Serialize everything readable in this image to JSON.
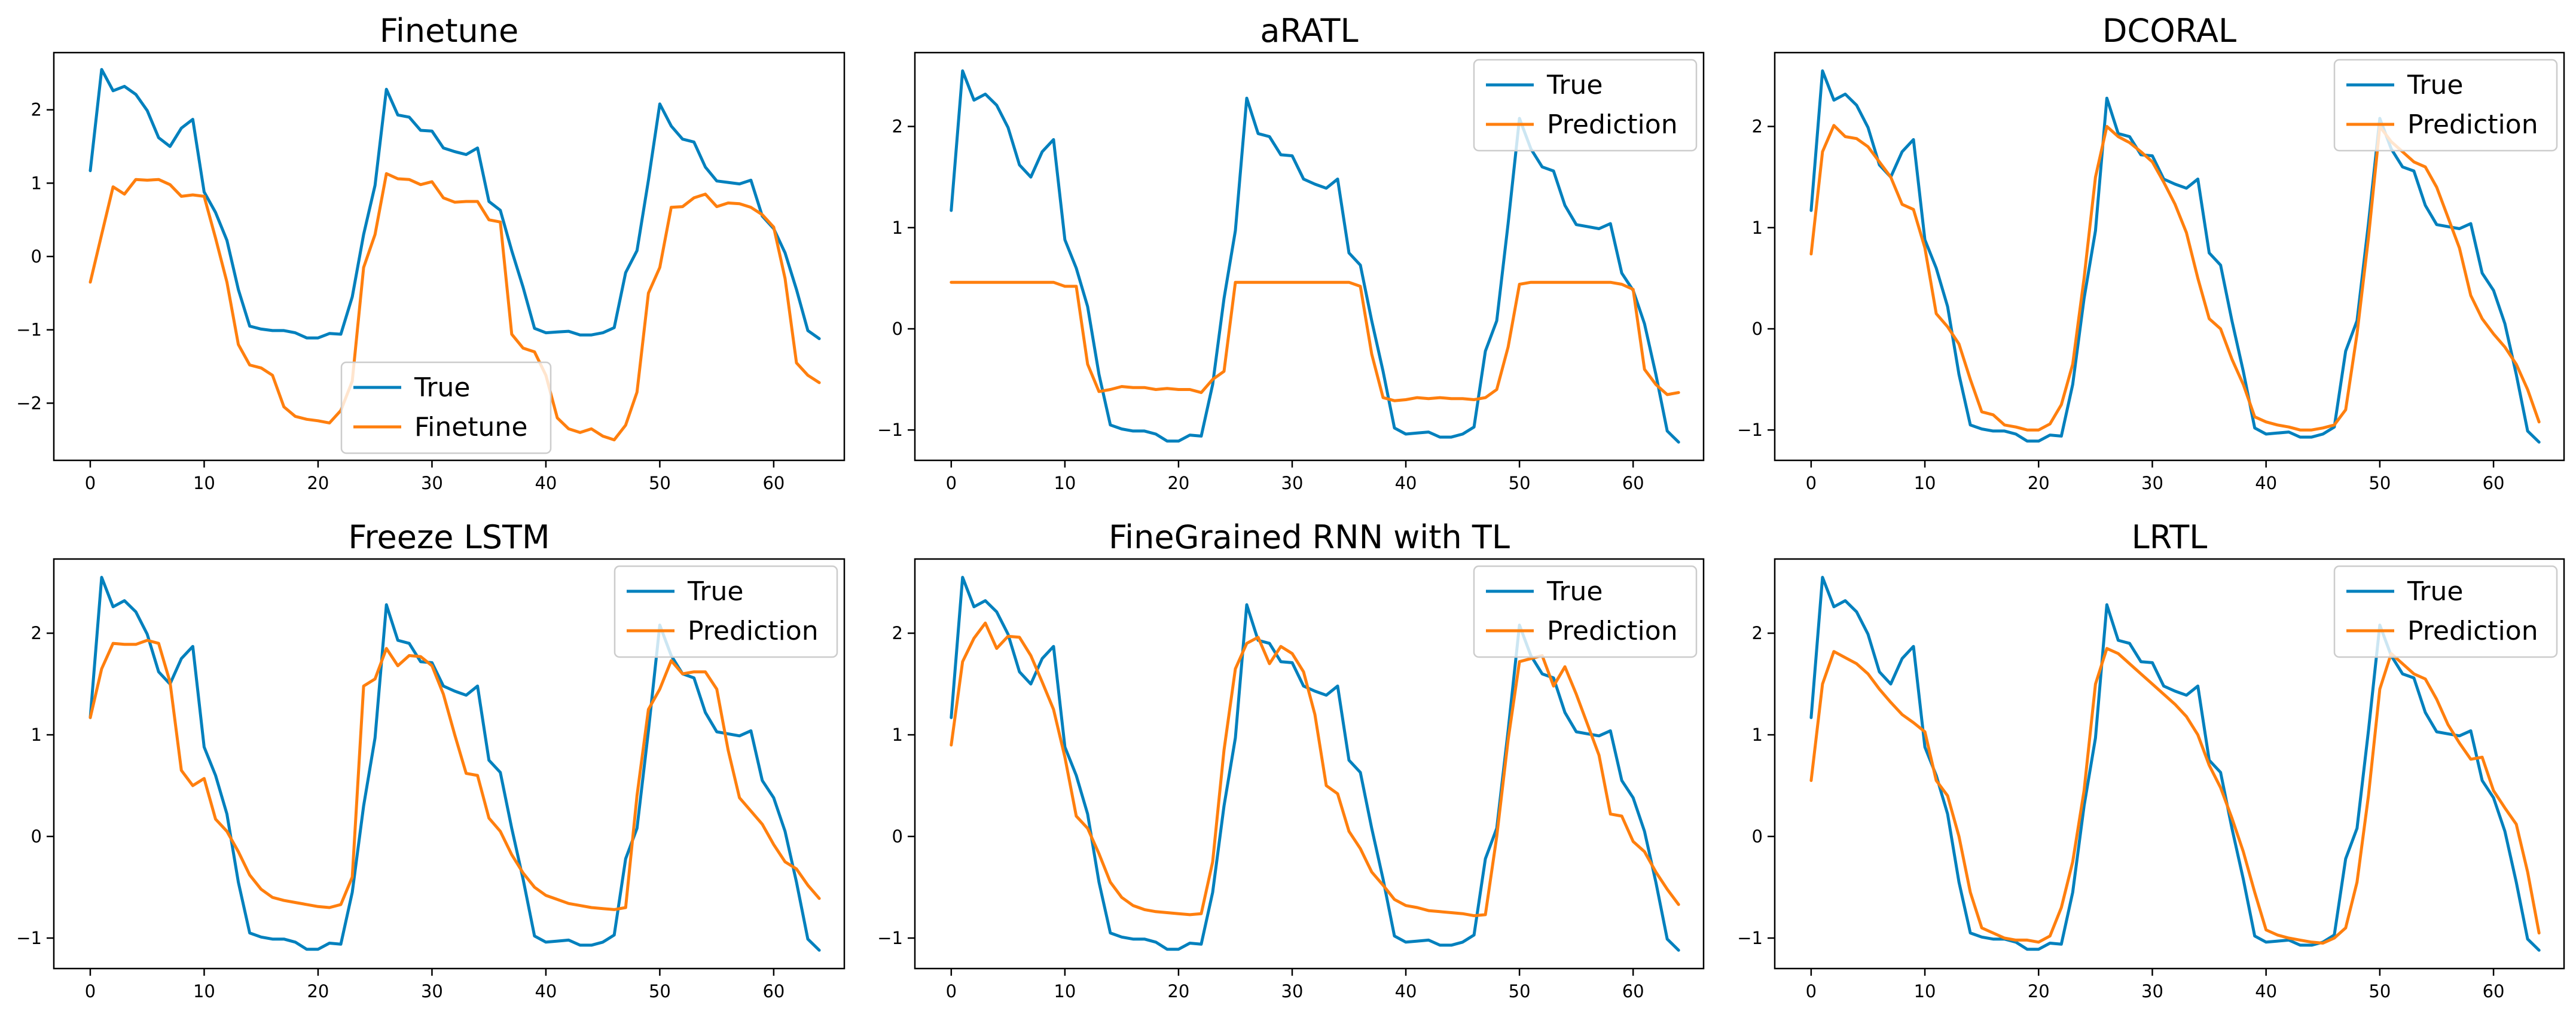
{
  "colors": {
    "true": "#0080bd",
    "prediction": "#ff7f0e"
  },
  "true_series": [
    1.17,
    2.55,
    2.26,
    2.32,
    2.21,
    1.99,
    1.62,
    1.5,
    1.75,
    1.87,
    0.88,
    0.6,
    0.22,
    -0.45,
    -0.95,
    -0.99,
    -1.01,
    -1.01,
    -1.04,
    -1.11,
    -1.11,
    -1.05,
    -1.06,
    -0.55,
    0.3,
    0.97,
    2.28,
    1.93,
    1.9,
    1.72,
    1.71,
    1.48,
    1.43,
    1.39,
    1.48,
    0.75,
    0.63,
    0.08,
    -0.42,
    -0.98,
    -1.04,
    -1.03,
    -1.02,
    -1.07,
    -1.07,
    -1.04,
    -0.97,
    -0.22,
    0.08,
    1.04,
    2.08,
    1.78,
    1.6,
    1.56,
    1.22,
    1.03,
    1.01,
    0.99,
    1.04,
    0.55,
    0.38,
    0.05,
    -0.45,
    -1.01,
    -1.12
  ],
  "chart_data": [
    {
      "type": "line",
      "title": "Finetune",
      "legend_position": "bottom-center",
      "xlim": [
        -3.2,
        66.2
      ],
      "ylim": [
        -2.78,
        2.78
      ],
      "xticks": [
        0,
        10,
        20,
        30,
        40,
        50,
        60
      ],
      "yticks": [
        -2,
        -1,
        0,
        1,
        2
      ],
      "series": [
        {
          "name": "True",
          "color": "true",
          "ref": "true_series"
        },
        {
          "name": "Finetune",
          "color": "prediction",
          "values": [
            -0.35,
            0.3,
            0.95,
            0.85,
            1.05,
            1.04,
            1.05,
            0.98,
            0.82,
            0.84,
            0.82,
            0.25,
            -0.35,
            -1.2,
            -1.48,
            -1.52,
            -1.62,
            -2.05,
            -2.18,
            -2.22,
            -2.24,
            -2.27,
            -2.1,
            -1.7,
            -0.15,
            0.3,
            1.13,
            1.06,
            1.05,
            0.98,
            1.02,
            0.8,
            0.74,
            0.75,
            0.75,
            0.5,
            0.47,
            -1.06,
            -1.25,
            -1.3,
            -1.62,
            -2.2,
            -2.35,
            -2.4,
            -2.35,
            -2.45,
            -2.5,
            -2.3,
            -1.85,
            -0.5,
            -0.15,
            0.67,
            0.68,
            0.8,
            0.85,
            0.68,
            0.73,
            0.72,
            0.67,
            0.57,
            0.4,
            -0.3,
            -1.45,
            -1.62,
            -1.72
          ]
        }
      ]
    },
    {
      "type": "line",
      "title": "aRATL",
      "legend_position": "top-right",
      "xlim": [
        -3.2,
        66.2
      ],
      "ylim": [
        -1.3,
        2.73
      ],
      "xticks": [
        0,
        10,
        20,
        30,
        40,
        50,
        60
      ],
      "yticks": [
        -1,
        0,
        1,
        2
      ],
      "series": [
        {
          "name": "True",
          "color": "true",
          "ref": "true_series"
        },
        {
          "name": "Prediction",
          "color": "prediction",
          "values": [
            0.46,
            0.46,
            0.46,
            0.46,
            0.46,
            0.46,
            0.46,
            0.46,
            0.46,
            0.46,
            0.42,
            0.42,
            -0.35,
            -0.62,
            -0.6,
            -0.57,
            -0.58,
            -0.58,
            -0.6,
            -0.59,
            -0.6,
            -0.6,
            -0.63,
            -0.5,
            -0.42,
            0.46,
            0.46,
            0.46,
            0.46,
            0.46,
            0.46,
            0.46,
            0.46,
            0.46,
            0.46,
            0.46,
            0.42,
            -0.25,
            -0.68,
            -0.71,
            -0.7,
            -0.68,
            -0.69,
            -0.68,
            -0.69,
            -0.69,
            -0.7,
            -0.68,
            -0.6,
            -0.18,
            0.44,
            0.46,
            0.46,
            0.46,
            0.46,
            0.46,
            0.46,
            0.46,
            0.46,
            0.44,
            0.39,
            -0.4,
            -0.55,
            -0.65,
            -0.63
          ]
        }
      ]
    },
    {
      "type": "line",
      "title": "DCORAL",
      "legend_position": "top-right",
      "xlim": [
        -3.2,
        66.2
      ],
      "ylim": [
        -1.3,
        2.73
      ],
      "xticks": [
        0,
        10,
        20,
        30,
        40,
        50,
        60
      ],
      "yticks": [
        -1,
        0,
        1,
        2
      ],
      "series": [
        {
          "name": "True",
          "color": "true",
          "ref": "true_series"
        },
        {
          "name": "Prediction",
          "color": "prediction",
          "values": [
            0.74,
            1.75,
            2.01,
            1.9,
            1.88,
            1.8,
            1.65,
            1.5,
            1.23,
            1.18,
            0.8,
            0.15,
            0.02,
            -0.15,
            -0.5,
            -0.82,
            -0.85,
            -0.95,
            -0.97,
            -1.0,
            -1.0,
            -0.94,
            -0.75,
            -0.35,
            0.5,
            1.5,
            2.0,
            1.9,
            1.84,
            1.75,
            1.65,
            1.45,
            1.23,
            0.95,
            0.5,
            0.1,
            0.0,
            -0.3,
            -0.55,
            -0.87,
            -0.92,
            -0.95,
            -0.97,
            -1.0,
            -1.0,
            -0.98,
            -0.95,
            -0.8,
            -0.05,
            0.9,
            2.0,
            1.85,
            1.75,
            1.65,
            1.6,
            1.4,
            1.1,
            0.8,
            0.33,
            0.1,
            -0.05,
            -0.18,
            -0.35,
            -0.6,
            -0.92
          ]
        }
      ]
    },
    {
      "type": "line",
      "title": "Freeze LSTM",
      "legend_position": "top-right",
      "xlim": [
        -3.2,
        66.2
      ],
      "ylim": [
        -1.3,
        2.73
      ],
      "xticks": [
        0,
        10,
        20,
        30,
        40,
        50,
        60
      ],
      "yticks": [
        -1,
        0,
        1,
        2
      ],
      "series": [
        {
          "name": "True",
          "color": "true",
          "ref": "true_series"
        },
        {
          "name": "Prediction",
          "color": "prediction",
          "values": [
            1.17,
            1.65,
            1.9,
            1.89,
            1.89,
            1.93,
            1.9,
            1.52,
            0.65,
            0.5,
            0.57,
            0.17,
            0.05,
            -0.15,
            -0.38,
            -0.52,
            -0.6,
            -0.63,
            -0.65,
            -0.67,
            -0.69,
            -0.7,
            -0.67,
            -0.4,
            1.48,
            1.55,
            1.85,
            1.68,
            1.78,
            1.77,
            1.68,
            1.4,
            1.0,
            0.62,
            0.6,
            0.18,
            0.05,
            -0.18,
            -0.36,
            -0.5,
            -0.58,
            -0.62,
            -0.66,
            -0.68,
            -0.7,
            -0.71,
            -0.72,
            -0.7,
            0.4,
            1.25,
            1.45,
            1.73,
            1.6,
            1.62,
            1.62,
            1.45,
            0.85,
            0.38,
            0.25,
            0.12,
            -0.08,
            -0.25,
            -0.32,
            -0.48,
            -0.61
          ]
        }
      ]
    },
    {
      "type": "line",
      "title": "FineGrained RNN with TL",
      "legend_position": "top-right",
      "xlim": [
        -3.2,
        66.2
      ],
      "ylim": [
        -1.3,
        2.73
      ],
      "xticks": [
        0,
        10,
        20,
        30,
        40,
        50,
        60
      ],
      "yticks": [
        -1,
        0,
        1,
        2
      ],
      "series": [
        {
          "name": "True",
          "color": "true",
          "ref": "true_series"
        },
        {
          "name": "Prediction",
          "color": "prediction",
          "values": [
            0.9,
            1.72,
            1.95,
            2.1,
            1.85,
            1.97,
            1.96,
            1.78,
            1.52,
            1.25,
            0.78,
            0.2,
            0.08,
            -0.17,
            -0.45,
            -0.6,
            -0.68,
            -0.72,
            -0.74,
            -0.75,
            -0.76,
            -0.77,
            -0.76,
            -0.25,
            0.85,
            1.65,
            1.9,
            1.96,
            1.7,
            1.87,
            1.8,
            1.62,
            1.2,
            0.5,
            0.42,
            0.05,
            -0.12,
            -0.35,
            -0.48,
            -0.62,
            -0.68,
            -0.7,
            -0.73,
            -0.74,
            -0.75,
            -0.76,
            -0.78,
            -0.77,
            0.0,
            0.95,
            1.72,
            1.75,
            1.78,
            1.48,
            1.67,
            1.4,
            1.1,
            0.8,
            0.22,
            0.2,
            -0.05,
            -0.15,
            -0.35,
            -0.52,
            -0.67
          ]
        }
      ]
    },
    {
      "type": "line",
      "title": "LRTL",
      "legend_position": "top-right",
      "xlim": [
        -3.2,
        66.2
      ],
      "ylim": [
        -1.3,
        2.73
      ],
      "xticks": [
        0,
        10,
        20,
        30,
        40,
        50,
        60
      ],
      "yticks": [
        -1,
        0,
        1,
        2
      ],
      "series": [
        {
          "name": "True",
          "color": "true",
          "ref": "true_series"
        },
        {
          "name": "Prediction",
          "color": "prediction",
          "values": [
            0.55,
            1.5,
            1.82,
            1.76,
            1.7,
            1.6,
            1.45,
            1.32,
            1.2,
            1.12,
            1.03,
            0.55,
            0.4,
            0.0,
            -0.55,
            -0.9,
            -0.95,
            -1.0,
            -1.02,
            -1.02,
            -1.04,
            -0.98,
            -0.7,
            -0.25,
            0.45,
            1.5,
            1.85,
            1.8,
            1.7,
            1.6,
            1.5,
            1.4,
            1.3,
            1.18,
            1.0,
            0.7,
            0.48,
            0.18,
            -0.15,
            -0.55,
            -0.92,
            -0.97,
            -1.0,
            -1.02,
            -1.04,
            -1.05,
            -1.0,
            -0.9,
            -0.45,
            0.4,
            1.45,
            1.8,
            1.7,
            1.6,
            1.55,
            1.35,
            1.1,
            0.92,
            0.76,
            0.78,
            0.45,
            0.28,
            0.12,
            -0.35,
            -0.95
          ]
        }
      ]
    }
  ]
}
